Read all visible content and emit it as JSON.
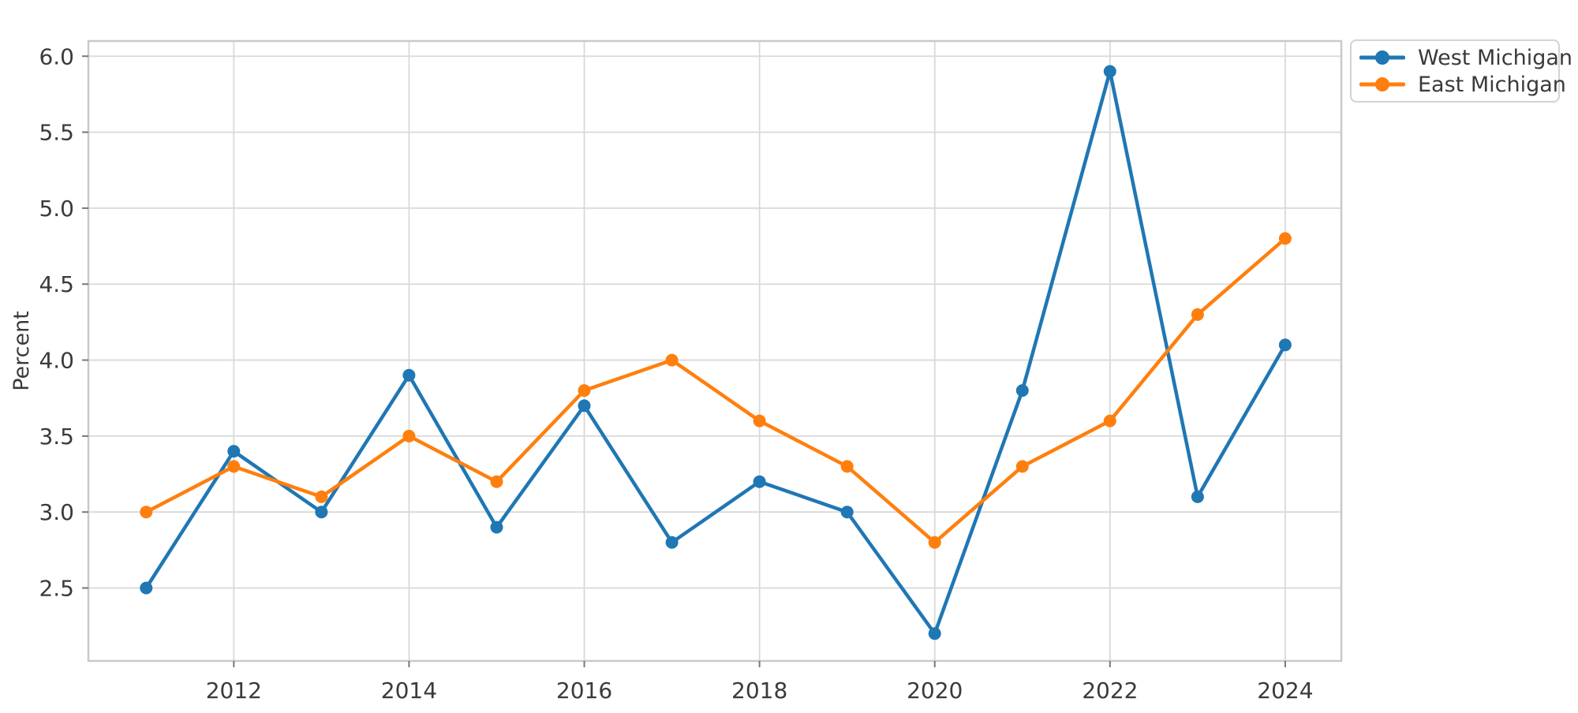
{
  "chart_data": {
    "type": "line",
    "title": "",
    "xlabel": "",
    "ylabel": "Percent",
    "x": [
      2011,
      2012,
      2013,
      2014,
      2015,
      2016,
      2017,
      2018,
      2019,
      2020,
      2021,
      2022,
      2023,
      2024
    ],
    "series": [
      {
        "name": "West Michigan",
        "color": "#1f77b4",
        "marker": "circle",
        "values": [
          2.5,
          3.4,
          3.0,
          3.9,
          2.9,
          3.7,
          2.8,
          3.2,
          3.0,
          2.2,
          3.8,
          5.9,
          3.1,
          4.1
        ]
      },
      {
        "name": "East Michigan",
        "color": "#ff7f0e",
        "marker": "circle",
        "values": [
          3.0,
          3.3,
          3.1,
          3.5,
          3.2,
          3.8,
          4.0,
          3.6,
          3.3,
          2.8,
          3.3,
          3.6,
          4.3,
          4.8
        ]
      }
    ],
    "x_ticks": [
      2012,
      2014,
      2016,
      2018,
      2020,
      2022,
      2024
    ],
    "x_tick_labels": [
      "2012",
      "2014",
      "2016",
      "2018",
      "2020",
      "2022",
      "2024"
    ],
    "y_ticks": [
      2.5,
      3.0,
      3.5,
      4.0,
      4.5,
      5.0,
      5.5,
      6.0
    ],
    "y_tick_labels": [
      "2.5",
      "3.0",
      "3.5",
      "4.0",
      "4.5",
      "5.0",
      "5.5",
      "6.0"
    ],
    "xlim": [
      2010.34,
      2024.64
    ],
    "ylim": [
      2.02,
      6.1
    ],
    "grid": true,
    "legend_position": "outside-upper-right",
    "colors": {
      "grid": "#d9d9d9",
      "spine": "#c9c9c9",
      "text": "#3a3a3a",
      "background": "#ffffff"
    }
  }
}
